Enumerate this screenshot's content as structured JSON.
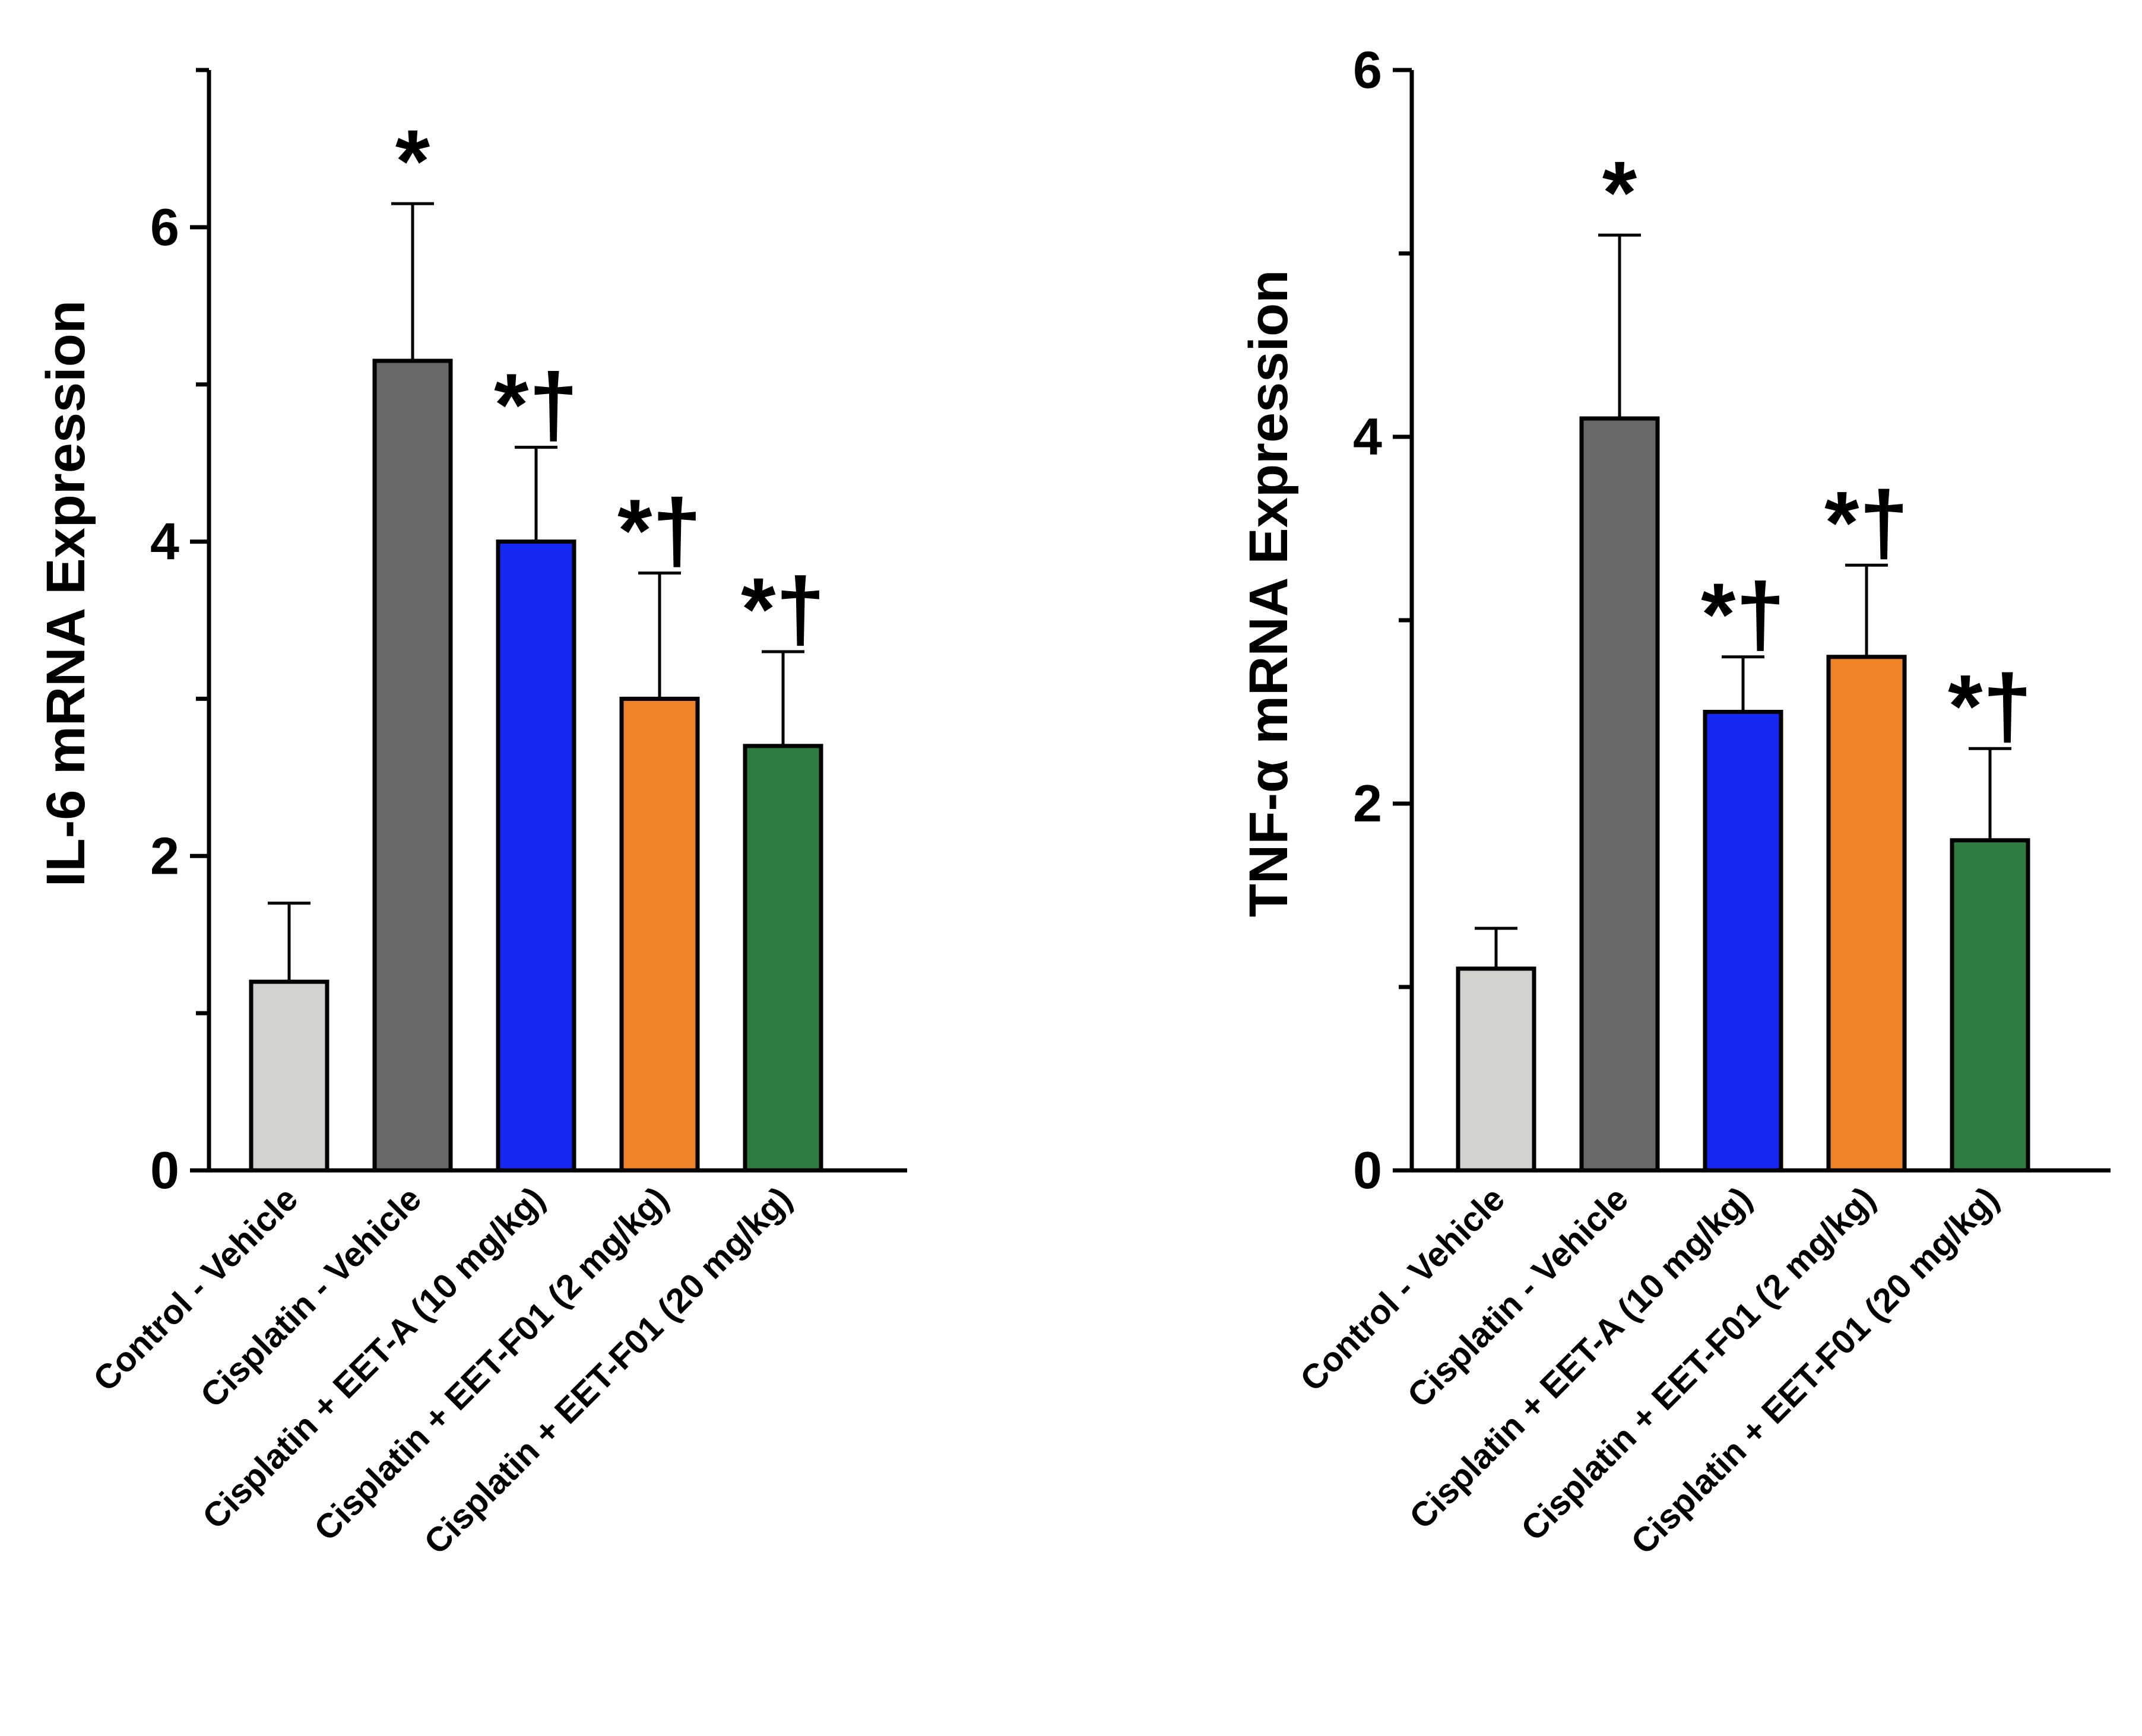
{
  "chart_data": [
    {
      "type": "bar",
      "title": "",
      "xlabel": "",
      "ylabel": "IL-6 mRNA Expression",
      "ylim": [
        0,
        7
      ],
      "yticks": [
        0,
        2,
        4,
        6
      ],
      "categories": [
        "Control - Vehicle",
        "Cisplatin - Vehicle",
        "Cisplatin + EET-A (10 mg/kg)",
        "Cisplatin + EET-F01 (2 mg/kg)",
        "Cisplatin + EET-F01 (20 mg/kg)"
      ],
      "values": [
        1.2,
        5.15,
        4.0,
        3.0,
        2.7
      ],
      "error_upper": [
        1.7,
        6.15,
        4.6,
        3.8,
        3.3
      ],
      "significance": [
        "",
        "*",
        "*†",
        "*†",
        "*†"
      ],
      "colors": [
        "#d1d1ce",
        "#686868",
        "#1527f2",
        "#ef832a",
        "#2e7d3e"
      ]
    },
    {
      "type": "bar",
      "title": "",
      "xlabel": "",
      "ylabel": "TNF-α mRNA Expression",
      "ylim": [
        0,
        6
      ],
      "yticks": [
        0,
        2,
        4,
        6
      ],
      "categories": [
        "Control - Vehicle",
        "Cisplatin - Vehicle",
        "Cisplatin + EET-A (10 mg/kg)",
        "Cisplatin + EET-F01 (2 mg/kg)",
        "Cisplatin + EET-F01 (20 mg/kg)"
      ],
      "values": [
        1.1,
        4.1,
        2.5,
        2.8,
        1.8
      ],
      "error_upper": [
        1.32,
        5.1,
        2.8,
        3.3,
        2.3
      ],
      "significance": [
        "",
        "*",
        "*†",
        "*†",
        "*†"
      ],
      "colors": [
        "#d1d1ce",
        "#686868",
        "#1527f2",
        "#ef832a",
        "#2e7d3e"
      ]
    }
  ]
}
